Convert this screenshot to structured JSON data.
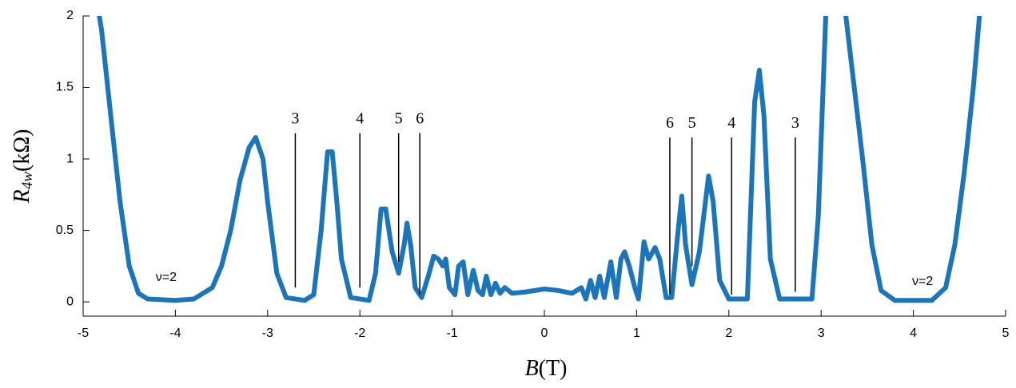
{
  "chart_data": {
    "type": "line",
    "xlabel": {
      "symbol": "B",
      "unit": "(T)"
    },
    "ylabel": {
      "symbol": "R",
      "subscript": "4w",
      "unit": "(kΩ)"
    },
    "xlim": [
      -5,
      5
    ],
    "ylim": [
      -0.1,
      2
    ],
    "xticks": [
      -5,
      -4,
      -3,
      -2,
      -1,
      0,
      1,
      2,
      3,
      4,
      5
    ],
    "yticks": [
      0,
      0.5,
      1,
      1.5,
      2
    ],
    "series": [
      {
        "color": "#1b75bb",
        "x": [
          -4.85,
          -4.8,
          -4.7,
          -4.6,
          -4.5,
          -4.4,
          -4.3,
          -4.0,
          -3.8,
          -3.6,
          -3.5,
          -3.4,
          -3.3,
          -3.2,
          -3.13,
          -3.05,
          -3.0,
          -2.9,
          -2.8,
          -2.6,
          -2.5,
          -2.42,
          -2.35,
          -2.3,
          -2.25,
          -2.2,
          -2.1,
          -1.9,
          -1.83,
          -1.77,
          -1.72,
          -1.65,
          -1.58,
          -1.52,
          -1.49,
          -1.45,
          -1.4,
          -1.33,
          -1.25,
          -1.2,
          -1.15,
          -1.1,
          -1.07,
          -1.03,
          -0.97,
          -0.93,
          -0.88,
          -0.83,
          -0.77,
          -0.72,
          -0.67,
          -0.63,
          -0.58,
          -0.53,
          -0.48,
          -0.43,
          -0.35,
          -0.2,
          0,
          0.15,
          0.3,
          0.4,
          0.45,
          0.5,
          0.55,
          0.6,
          0.65,
          0.72,
          0.78,
          0.83,
          0.87,
          0.92,
          0.98,
          1.02,
          1.08,
          1.13,
          1.2,
          1.25,
          1.32,
          1.38,
          1.45,
          1.49,
          1.53,
          1.6,
          1.68,
          1.78,
          1.83,
          1.9,
          2.0,
          2.2,
          2.28,
          2.33,
          2.38,
          2.45,
          2.55,
          2.9,
          2.97,
          3.05,
          3.1,
          3.25,
          3.35,
          3.45,
          3.55,
          3.65,
          3.8,
          4.2,
          4.35,
          4.45,
          4.55,
          4.65,
          4.73
        ],
        "values": [
          2.1,
          1.9,
          1.3,
          0.7,
          0.25,
          0.06,
          0.02,
          0.01,
          0.02,
          0.1,
          0.25,
          0.5,
          0.85,
          1.08,
          1.15,
          1.0,
          0.7,
          0.2,
          0.03,
          0.01,
          0.05,
          0.5,
          1.05,
          1.05,
          0.7,
          0.3,
          0.03,
          0.01,
          0.2,
          0.65,
          0.65,
          0.35,
          0.2,
          0.4,
          0.55,
          0.4,
          0.1,
          0.03,
          0.2,
          0.32,
          0.3,
          0.25,
          0.3,
          0.1,
          0.05,
          0.25,
          0.28,
          0.05,
          0.22,
          0.08,
          0.05,
          0.18,
          0.05,
          0.13,
          0.06,
          0.1,
          0.06,
          0.07,
          0.09,
          0.08,
          0.06,
          0.1,
          0.02,
          0.15,
          0.03,
          0.18,
          0.03,
          0.28,
          0.03,
          0.3,
          0.35,
          0.25,
          0.1,
          0.02,
          0.42,
          0.3,
          0.38,
          0.3,
          0.03,
          0.03,
          0.5,
          0.74,
          0.4,
          0.12,
          0.35,
          0.88,
          0.7,
          0.15,
          0.02,
          0.02,
          1.4,
          1.62,
          1.3,
          0.3,
          0.02,
          0.02,
          0.6,
          2.0,
          2.2,
          2.1,
          1.55,
          1.0,
          0.4,
          0.08,
          0.01,
          0.01,
          0.1,
          0.4,
          0.9,
          1.5,
          2.1
        ]
      }
    ],
    "annotations": [
      {
        "text": "3",
        "x": -2.7,
        "y": [
          1.18,
          0.1
        ]
      },
      {
        "text": "4",
        "x": -2.0,
        "y": [
          1.18,
          0.1
        ]
      },
      {
        "text": "5",
        "x": -1.58,
        "y": [
          1.18,
          0.28
        ]
      },
      {
        "text": "6",
        "x": -1.35,
        "y": [
          1.18,
          0.05
        ]
      },
      {
        "text": "6",
        "x": 1.36,
        "y": [
          1.15,
          0.05
        ]
      },
      {
        "text": "5",
        "x": 1.6,
        "y": [
          1.15,
          0.25
        ]
      },
      {
        "text": "4",
        "x": 2.03,
        "y": [
          1.15,
          0.05
        ]
      },
      {
        "text": "3",
        "x": 2.72,
        "y": [
          1.15,
          0.07
        ]
      }
    ],
    "labels": [
      {
        "text": "ν=2",
        "x": -4.1,
        "y": 0.17
      },
      {
        "text": "ν=2",
        "x": 4.1,
        "y": 0.14
      }
    ]
  }
}
